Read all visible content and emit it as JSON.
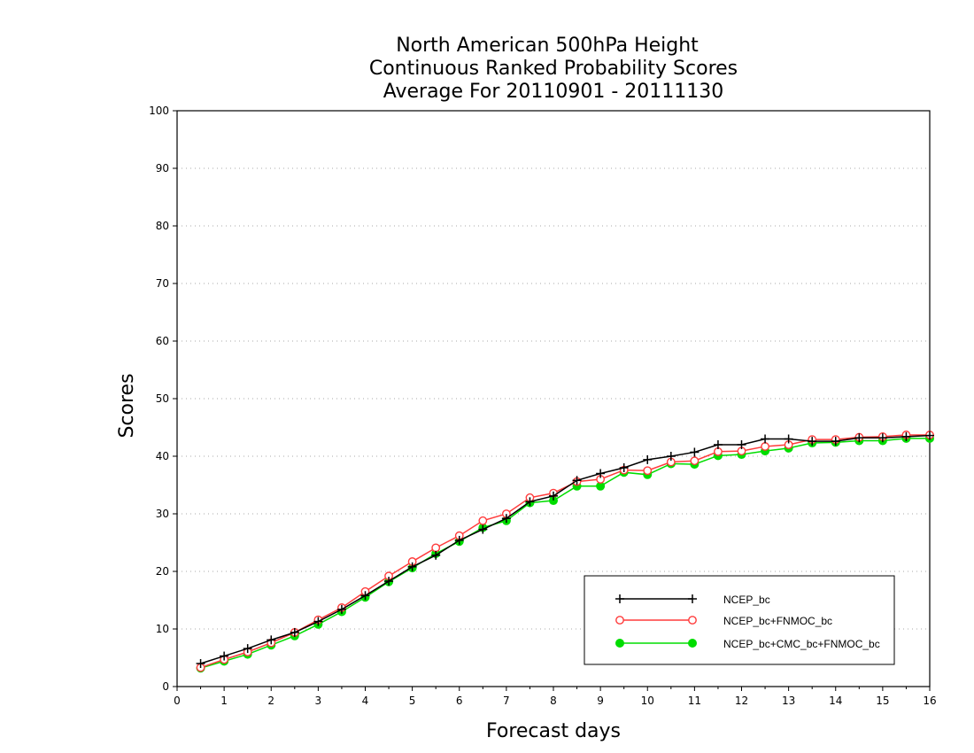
{
  "chart_data": {
    "type": "line",
    "title": [
      "North American 500hPa Height",
      "Continuous Ranked Probability Scores",
      "Average For 20110901 - 20111130"
    ],
    "xlabel": "Forecast days",
    "ylabel": "Scores",
    "xlim": [
      0,
      16
    ],
    "ylim": [
      0,
      100
    ],
    "xticks": [
      "0",
      "1",
      "2",
      "3",
      "4",
      "5",
      "6",
      "7",
      "8",
      "9",
      "10",
      "11",
      "12",
      "13",
      "14",
      "15",
      "16"
    ],
    "yticks": [
      "0",
      "10",
      "20",
      "30",
      "40",
      "50",
      "60",
      "70",
      "80",
      "90",
      "100"
    ],
    "grid": "horizontal dotted",
    "legend_position": "bottom-right",
    "x": [
      0.5,
      1,
      1.5,
      2,
      2.5,
      3,
      3.5,
      4,
      4.5,
      5,
      5.5,
      6,
      6.5,
      7,
      7.5,
      8,
      8.5,
      9,
      9.5,
      10,
      10.5,
      11,
      11.5,
      12,
      12.5,
      13,
      13.5,
      14,
      14.5,
      15,
      15.5,
      16
    ],
    "series": [
      {
        "name": "NCEP_bc",
        "color": "#000000",
        "marker": "plus",
        "values": [
          4.0,
          5.3,
          6.6,
          8.1,
          9.4,
          11.3,
          13.4,
          15.8,
          18.3,
          20.8,
          22.8,
          25.4,
          27.3,
          29.2,
          32.1,
          33.1,
          35.8,
          37.0,
          38.0,
          39.4,
          40.0,
          40.7,
          42.0,
          42.0,
          43.0,
          43.0,
          42.6,
          42.6,
          43.2,
          43.2,
          43.4,
          43.6
        ]
      },
      {
        "name": "NCEP_bc+FNMOC_bc",
        "color": "#ff3b3b",
        "marker": "open-circle",
        "values": [
          3.3,
          4.7,
          6.0,
          7.6,
          9.4,
          11.6,
          13.7,
          16.5,
          19.2,
          21.7,
          24.1,
          26.2,
          28.8,
          30.0,
          32.8,
          33.6,
          35.6,
          36.0,
          37.6,
          37.5,
          39.0,
          39.2,
          40.8,
          40.9,
          41.7,
          42.0,
          42.9,
          42.9,
          43.3,
          43.4,
          43.7,
          43.7
        ]
      },
      {
        "name": "NCEP_bc+CMC_bc+FNMOC_bc",
        "color": "#00dd00",
        "marker": "filled-circle",
        "values": [
          3.2,
          4.4,
          5.6,
          7.2,
          8.8,
          10.8,
          13.0,
          15.5,
          18.2,
          20.6,
          23.1,
          25.2,
          27.6,
          28.8,
          31.9,
          32.3,
          34.8,
          34.8,
          37.2,
          36.8,
          38.7,
          38.6,
          40.1,
          40.3,
          40.9,
          41.4,
          42.3,
          42.4,
          42.7,
          42.7,
          43.1,
          43.1
        ]
      }
    ]
  }
}
